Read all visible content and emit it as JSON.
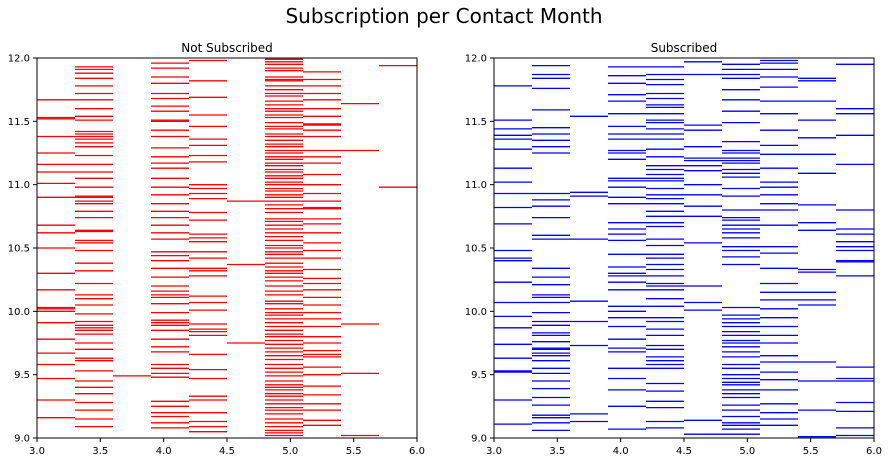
{
  "figure": {
    "title": "Subscription per Contact Month"
  },
  "chart_data": [
    {
      "type": "scatter",
      "marker": "horizontal-line",
      "title": "Not Subscribed",
      "color": "#ff0000",
      "xlabel": "",
      "ylabel": "",
      "xlim": [
        3.0,
        6.0
      ],
      "ylim": [
        9.0,
        12.0
      ],
      "xticks": [
        "3.0",
        "3.5",
        "4.0",
        "4.5",
        "5.0",
        "5.5",
        "6.0"
      ],
      "yticks": [
        "9.0",
        "9.5",
        "10.0",
        "10.5",
        "11.0",
        "11.5",
        "12.0"
      ],
      "grid": false,
      "columns": [
        {
          "x_start": 3.0,
          "x_end": 3.3,
          "y": [
            11.67,
            11.53,
            11.52,
            11.38,
            11.25,
            11.16,
            11.1,
            11.01,
            10.9,
            10.68,
            10.62,
            10.5,
            10.3,
            10.17,
            10.03,
            10.02,
            10.0,
            9.91,
            9.78,
            9.67,
            9.58,
            9.47,
            9.3,
            9.16
          ]
        },
        {
          "x_start": 3.3,
          "x_end": 3.6,
          "y": [
            11.93,
            11.91,
            11.88,
            11.84,
            11.78,
            11.72,
            11.67,
            11.6,
            11.54,
            11.51,
            11.42,
            11.4,
            11.38,
            11.36,
            11.33,
            11.3,
            11.23,
            11.16,
            11.1,
            11.05,
            10.98,
            10.91,
            10.9,
            10.87,
            10.85,
            10.79,
            10.74,
            10.64,
            10.63,
            10.56,
            10.54,
            10.48,
            10.38,
            10.32,
            10.22,
            10.13,
            10.1,
            10.05,
            9.98,
            9.92,
            9.89,
            9.87,
            9.85,
            9.82,
            9.75,
            9.7,
            9.63,
            9.61,
            9.53,
            9.45,
            9.4,
            9.35,
            9.28,
            9.22,
            9.15,
            9.09
          ]
        },
        {
          "x_start": 3.6,
          "x_end": 3.9,
          "y": [
            9.49
          ]
        },
        {
          "x_start": 3.9,
          "x_end": 4.2,
          "y": [
            11.96,
            11.92,
            11.85,
            11.8,
            11.72,
            11.68,
            11.62,
            11.58,
            11.51,
            11.5,
            11.43,
            11.38,
            11.29,
            11.22,
            11.17,
            11.13,
            11.05,
            10.98,
            10.92,
            10.85,
            10.79,
            10.74,
            10.68,
            10.62,
            10.57,
            10.47,
            10.44,
            10.4,
            10.34,
            10.27,
            10.2,
            10.16,
            10.13,
            10.11,
            10.06,
            9.99,
            9.93,
            9.91,
            9.89,
            9.85,
            9.78,
            9.72,
            9.68,
            9.58,
            9.55,
            9.51,
            9.48,
            9.29,
            9.25,
            9.2,
            9.17,
            9.12,
            9.08
          ]
        },
        {
          "x_start": 4.2,
          "x_end": 4.5,
          "y": [
            11.98,
            11.82,
            11.69,
            11.55,
            11.46,
            11.36,
            11.31,
            11.23,
            11.18,
            11.0,
            10.97,
            10.93,
            10.89,
            10.78,
            10.72,
            10.61,
            10.58,
            10.55,
            10.47,
            10.42,
            10.34,
            10.32,
            10.28,
            10.12,
            10.07,
            10.01,
            9.9,
            9.86,
            9.84,
            9.81,
            9.66,
            9.54,
            9.47,
            9.33,
            9.3,
            9.2,
            9.13,
            9.09,
            9.05
          ]
        },
        {
          "x_start": 4.5,
          "x_end": 4.8,
          "y": [
            10.87,
            10.37,
            9.75
          ]
        },
        {
          "x_start": 4.8,
          "x_end": 5.1,
          "y": [
            11.99,
            11.97,
            11.95,
            11.92,
            11.9,
            11.85,
            11.83,
            11.82,
            11.78,
            11.75,
            11.72,
            11.7,
            11.66,
            11.63,
            11.6,
            11.58,
            11.55,
            11.53,
            11.49,
            11.46,
            11.44,
            11.4,
            11.38,
            11.35,
            11.32,
            11.3,
            11.27,
            11.25,
            11.22,
            11.2,
            11.17,
            11.15,
            11.12,
            11.1,
            11.07,
            11.05,
            11.02,
            11.0,
            10.97,
            10.95,
            10.92,
            10.9,
            10.87,
            10.84,
            10.81,
            10.78,
            10.73,
            10.71,
            10.68,
            10.65,
            10.62,
            10.59,
            10.56,
            10.52,
            10.5,
            10.47,
            10.45,
            10.42,
            10.38,
            10.35,
            10.32,
            10.3,
            10.27,
            10.24,
            10.2,
            10.16,
            10.13,
            10.08,
            10.06,
            10.02,
            9.99,
            9.97,
            9.94,
            9.91,
            9.88,
            9.85,
            9.82,
            9.8,
            9.77,
            9.74,
            9.71,
            9.68,
            9.65,
            9.62,
            9.58,
            9.55,
            9.52,
            9.49,
            9.45,
            9.42,
            9.4,
            9.38,
            9.35,
            9.33,
            9.3,
            9.27,
            9.24,
            9.22,
            9.19,
            9.15,
            9.12,
            9.09,
            9.06,
            9.04,
            9.02
          ]
        },
        {
          "x_start": 5.1,
          "x_end": 5.4,
          "y": [
            11.89,
            11.83,
            11.78,
            11.72,
            11.67,
            11.6,
            11.54,
            11.48,
            11.47,
            11.43,
            11.38,
            11.27,
            11.22,
            11.17,
            11.08,
            11.0,
            10.93,
            10.87,
            10.82,
            10.81,
            10.73,
            10.69,
            10.62,
            10.54,
            10.48,
            10.42,
            10.33,
            10.26,
            10.22,
            10.17,
            10.11,
            10.05,
            9.99,
            9.94,
            9.88,
            9.8,
            9.75,
            9.69,
            9.66,
            9.64,
            9.56,
            9.5,
            9.41,
            9.34,
            9.27,
            9.22,
            9.14,
            9.1
          ]
        },
        {
          "x_start": 5.4,
          "x_end": 5.7,
          "y": [
            11.64,
            11.27,
            9.9,
            9.51,
            9.02
          ]
        },
        {
          "x_start": 5.7,
          "x_end": 6.0,
          "y": [
            11.94,
            10.98
          ]
        }
      ]
    },
    {
      "type": "scatter",
      "marker": "horizontal-line",
      "title": "Subscribed",
      "color": "#0000ff",
      "xlabel": "",
      "ylabel": "",
      "xlim": [
        3.0,
        6.0
      ],
      "ylim": [
        9.0,
        12.0
      ],
      "xticks": [
        "3.0",
        "3.5",
        "4.0",
        "4.5",
        "5.0",
        "5.5",
        "6.0"
      ],
      "yticks": [
        "9.0",
        "9.5",
        "10.0",
        "10.5",
        "11.0",
        "11.5",
        "12.0"
      ],
      "grid": false,
      "columns": [
        {
          "x_start": 3.0,
          "x_end": 3.3,
          "y": [
            11.78,
            11.51,
            11.44,
            11.39,
            11.36,
            11.28,
            11.13,
            11.02,
            10.93,
            10.82,
            10.69,
            10.48,
            10.42,
            10.4,
            10.23,
            10.07,
            9.96,
            9.87,
            9.74,
            9.63,
            9.53,
            9.52,
            9.3,
            9.11
          ]
        },
        {
          "x_start": 3.3,
          "x_end": 3.6,
          "y": [
            11.94,
            11.87,
            11.84,
            11.76,
            11.59,
            11.45,
            11.4,
            11.35,
            11.3,
            11.25,
            10.93,
            10.88,
            10.83,
            10.74,
            10.6,
            10.57,
            10.34,
            10.27,
            10.21,
            10.13,
            10.11,
            10.07,
            9.99,
            9.92,
            9.89,
            9.83,
            9.81,
            9.76,
            9.71,
            9.7,
            9.67,
            9.65,
            9.61,
            9.55,
            9.51,
            9.45,
            9.39,
            9.32,
            9.26,
            9.18,
            9.16,
            9.12,
            9.06
          ]
        },
        {
          "x_start": 3.6,
          "x_end": 3.9,
          "y": [
            11.54,
            10.94,
            10.91,
            10.57,
            10.08,
            9.92,
            9.73,
            9.19,
            9.13
          ]
        },
        {
          "x_start": 3.9,
          "x_end": 4.2,
          "y": [
            11.93,
            11.86,
            11.8,
            11.71,
            11.66,
            11.56,
            11.46,
            11.4,
            11.36,
            11.27,
            11.25,
            11.2,
            11.05,
            11.03,
            10.98,
            10.9,
            10.85,
            10.7,
            10.65,
            10.61,
            10.56,
            10.45,
            10.35,
            10.3,
            10.28,
            10.23,
            10.17,
            10.04,
            10.0,
            9.95,
            9.88,
            9.78,
            9.71,
            9.68,
            9.55,
            9.47,
            9.38,
            9.25,
            9.07
          ]
        },
        {
          "x_start": 4.2,
          "x_end": 4.5,
          "y": [
            11.93,
            11.87,
            11.83,
            11.79,
            11.72,
            11.68,
            11.63,
            11.61,
            11.56,
            11.51,
            11.49,
            11.44,
            11.4,
            11.36,
            11.28,
            11.22,
            11.15,
            11.12,
            11.08,
            11.05,
            11.03,
            10.97,
            10.92,
            10.89,
            10.85,
            10.79,
            10.75,
            10.7,
            10.67,
            10.57,
            10.52,
            10.45,
            10.42,
            10.37,
            10.33,
            10.28,
            10.22,
            10.2,
            10.17,
            10.1,
            10.04,
            9.95,
            9.92,
            9.86,
            9.81,
            9.73,
            9.7,
            9.64,
            9.61,
            9.58,
            9.55,
            9.43,
            9.37,
            9.29,
            9.24,
            9.13,
            9.08
          ]
        },
        {
          "x_start": 4.5,
          "x_end": 4.8,
          "y": [
            11.97,
            11.87,
            11.47,
            11.43,
            11.3,
            11.21,
            11.19,
            11.15,
            11.11,
            11.0,
            10.92,
            10.83,
            10.75,
            10.54,
            10.2,
            10.07,
            10.01,
            9.14,
            9.03
          ]
        },
        {
          "x_start": 4.8,
          "x_end": 5.1,
          "y": [
            11.95,
            11.91,
            11.87,
            11.84,
            11.75,
            11.67,
            11.58,
            11.49,
            11.34,
            11.27,
            11.25,
            11.21,
            11.19,
            11.17,
            11.12,
            11.09,
            11.06,
            10.97,
            10.91,
            10.8,
            10.74,
            10.72,
            10.68,
            10.65,
            10.62,
            10.58,
            10.51,
            10.48,
            10.43,
            10.37,
            10.03,
            9.97,
            9.94,
            9.91,
            9.88,
            9.84,
            9.81,
            9.77,
            9.75,
            9.72,
            9.68,
            9.64,
            9.58,
            9.55,
            9.5,
            9.47,
            9.44,
            9.42,
            9.38,
            9.35,
            9.32,
            9.26,
            9.22,
            9.17,
            9.12,
            9.1,
            9.07,
            9.03
          ]
        },
        {
          "x_start": 5.1,
          "x_end": 5.4,
          "y": [
            11.98,
            11.96,
            11.91,
            11.85,
            11.77,
            11.66,
            11.56,
            11.43,
            11.31,
            11.24,
            11.13,
            11.02,
            10.98,
            10.92,
            10.85,
            10.8,
            10.68,
            10.51,
            10.46,
            10.34,
            10.22,
            10.15,
            10.09,
            10.02,
            9.95,
            9.88,
            9.81,
            9.75,
            9.65,
            9.6,
            9.52,
            9.46,
            9.38,
            9.27,
            9.2,
            9.15,
            9.1
          ]
        },
        {
          "x_start": 5.4,
          "x_end": 5.7,
          "y": [
            11.84,
            11.82,
            11.66,
            11.51,
            11.37,
            11.24,
            11.09,
            10.84,
            10.7,
            10.64,
            10.33,
            10.31,
            10.15,
            10.09,
            10.05,
            9.6,
            9.45,
            9.22,
            9.01
          ]
        },
        {
          "x_start": 5.7,
          "x_end": 6.0,
          "y": [
            11.95,
            11.6,
            11.56,
            11.39,
            11.16,
            10.8,
            10.65,
            10.61,
            10.55,
            10.51,
            10.48,
            10.4,
            10.39,
            10.28,
            9.56,
            9.47,
            9.45,
            9.28,
            9.21,
            9.08,
            9.02
          ]
        }
      ]
    }
  ]
}
